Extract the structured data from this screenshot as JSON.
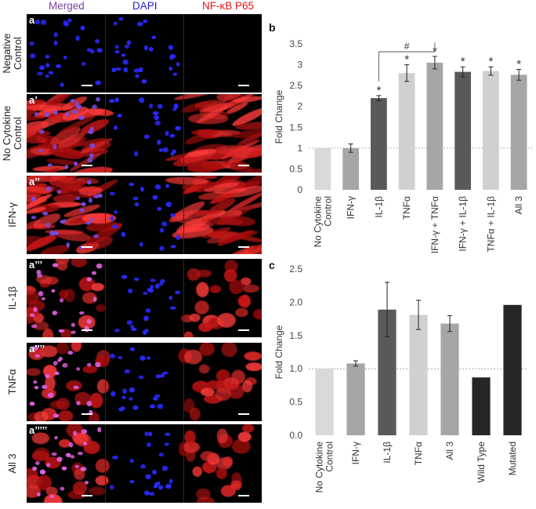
{
  "headers": {
    "merged": "Merged",
    "dapi": "DAPI",
    "nfkb": "NF-κB P65",
    "merged_color": "#7b3fa0",
    "dapi_color": "#1f1fd0",
    "nfkb_color": "#e01515"
  },
  "rows": [
    {
      "label": "Negative\nControl",
      "line1": "Negative",
      "line2": "Control",
      "panel": "a",
      "type": "neg"
    },
    {
      "label": "No Cytokine Control",
      "line1": "No Cytokine",
      "line2": "Control",
      "panel": "a’",
      "type": "fiber"
    },
    {
      "label": "IFN-γ",
      "line1": "IFN-γ",
      "line2": "",
      "panel": "a’’",
      "type": "fiber"
    },
    {
      "label": "IL-1β",
      "line1": "IL-1β",
      "line2": "",
      "panel": "a’’’",
      "type": "round"
    },
    {
      "label": "TNFα",
      "line1": "TNFα",
      "line2": "",
      "panel": "a’’’’",
      "type": "round"
    },
    {
      "label": "All 3",
      "line1": "All 3",
      "line2": "",
      "panel": "a’’’’’",
      "type": "round"
    }
  ],
  "chart_data": [
    {
      "panel_letter": "b",
      "type": "bar",
      "ylabel": "Fold Change",
      "ylim": [
        0,
        3.5
      ],
      "yticks": [
        "0",
        "0.5",
        "1",
        "1.5",
        "2",
        "2.5",
        "3",
        "3.5"
      ],
      "categories": [
        "No Cytokine Control",
        "IFN-γ",
        "IL-1β",
        "TNFα",
        "IFN-γ + TNFα",
        "IFN-γ + IL-1β",
        "TNFα + IL-1β",
        "All 3"
      ],
      "category_lines": [
        [
          "No Cytokine",
          "Control"
        ],
        [
          "IFN-γ"
        ],
        [
          "IL-1β"
        ],
        [
          "TNFα"
        ],
        [
          "IFN-γ + TNFα"
        ],
        [
          "IFN-γ + IL-1β"
        ],
        [
          "TNFα + IL-1β"
        ],
        [
          "All 3"
        ]
      ],
      "values": [
        1.0,
        1.0,
        2.2,
        2.8,
        3.05,
        2.83,
        2.85,
        2.76
      ],
      "errors": [
        0,
        0.1,
        0.06,
        0.2,
        0.15,
        0.12,
        0.1,
        0.13
      ],
      "significance": [
        "",
        "",
        "*",
        "*",
        "*",
        "*",
        "*",
        "*"
      ],
      "bracket": {
        "from": 2,
        "to": 4,
        "label": "#"
      },
      "colors": [
        "#d9d9d9",
        "#a6a6a6",
        "#595959",
        "#d0d0d0",
        "#a6a6a6",
        "#595959",
        "#d0d0d0",
        "#a6a6a6"
      ],
      "reference_line": 1,
      "grid": false
    },
    {
      "panel_letter": "c",
      "type": "bar",
      "ylabel": "Fold Change",
      "ylim": [
        0,
        2.5
      ],
      "yticks": [
        "0.0",
        "0.5",
        "1.0",
        "1.5",
        "2.0",
        "2.5"
      ],
      "categories": [
        "No Cytokine Control",
        "IFN-γ",
        "IL-1β",
        "TNFα",
        "All 3",
        "Wild Type",
        "Mutated"
      ],
      "category_lines": [
        [
          "No Cytokine",
          "Control"
        ],
        [
          "IFN-γ"
        ],
        [
          "IL-1β"
        ],
        [
          "TNFα"
        ],
        [
          "All 3"
        ],
        [
          "Wild Type"
        ],
        [
          "Mutated"
        ]
      ],
      "values": [
        1.0,
        1.08,
        1.89,
        1.81,
        1.68,
        0.87,
        1.96
      ],
      "errors": [
        0,
        0.04,
        0.41,
        0.22,
        0.12,
        0,
        0
      ],
      "colors": [
        "#d9d9d9",
        "#a6a6a6",
        "#595959",
        "#d0d0d0",
        "#a6a6a6",
        "#262626",
        "#262626"
      ],
      "reference_line": 1,
      "grid": false
    }
  ]
}
